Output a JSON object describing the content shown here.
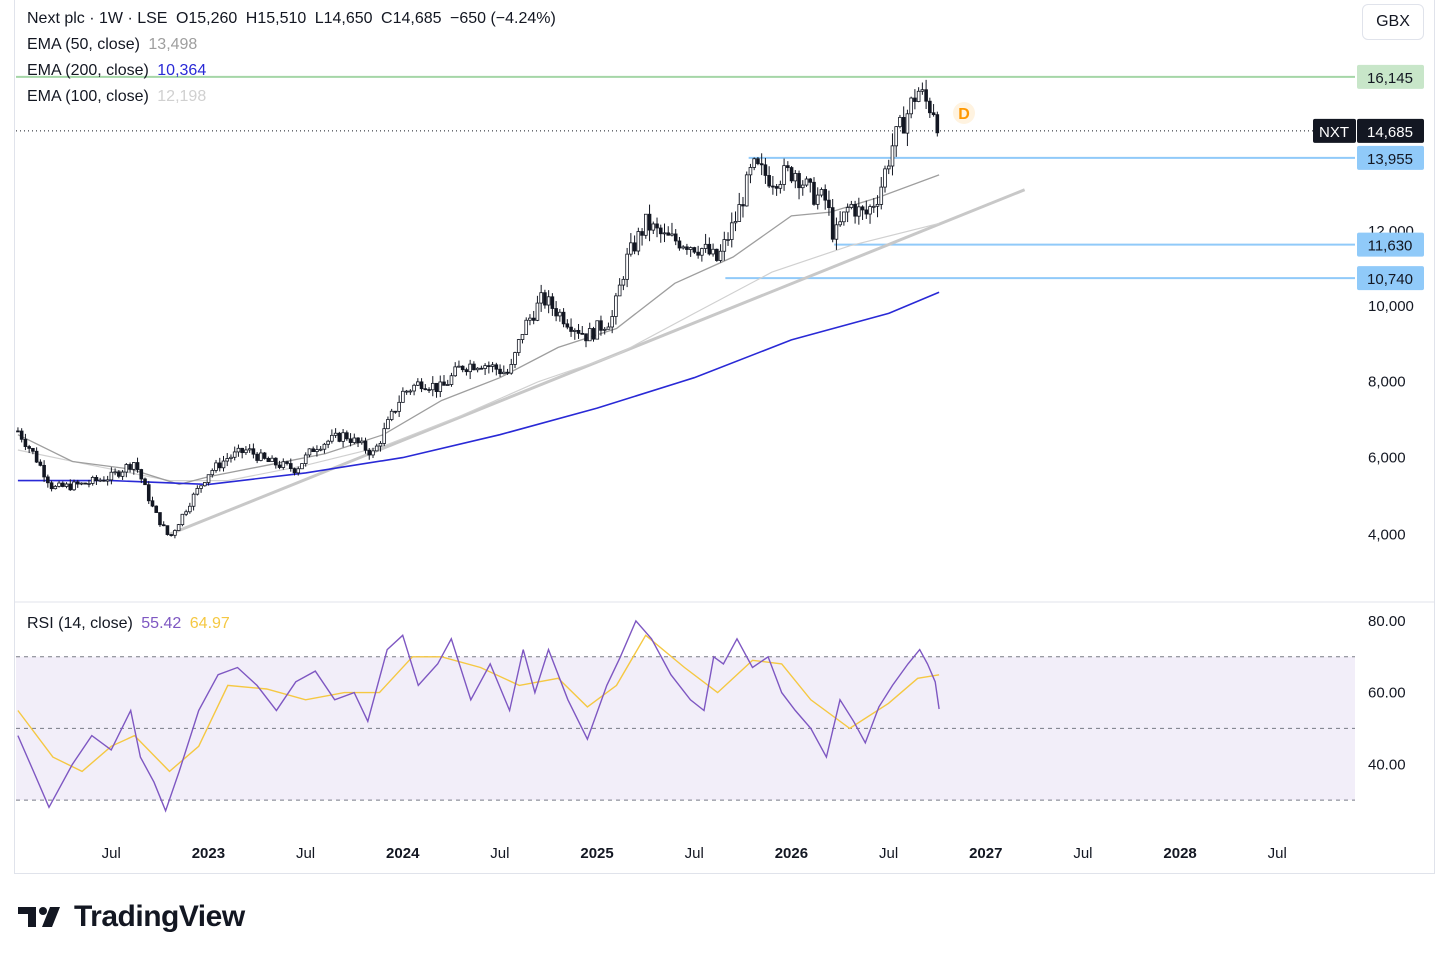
{
  "header": {
    "symbol_line": "Next plc · 1W · LSE",
    "open": "O15,260",
    "high": "H15,510",
    "low": "L14,650",
    "close": "C14,685",
    "change": "−650 (−4.24%)",
    "currency": "GBX"
  },
  "indicators": {
    "ema50": {
      "label": "EMA (50, close)",
      "value": "13,498",
      "color": "#9e9e9e"
    },
    "ema200": {
      "label": "EMA (200, close)",
      "value": "10,364",
      "color": "#2929d6"
    },
    "ema100": {
      "label": "EMA (100, close)",
      "value": "12,198",
      "color": "#d0d0d0"
    },
    "rsi": {
      "label": "RSI (14, close)",
      "value": "55.42",
      "ma_value": "64.97",
      "color": "#7e57c2",
      "ma_color": "#f5c842"
    }
  },
  "price_labels": {
    "ticker": "NXT",
    "last": "14,685",
    "level_16145": "16,145",
    "level_13955": "13,955",
    "level_11630": "11,630",
    "level_10740": "10,740",
    "dividend_marker": "D"
  },
  "brand": {
    "name": "TradingView"
  },
  "chart_data": {
    "type": "candlestick",
    "price_axis": {
      "ticks": [
        "4,000",
        "6,000",
        "8,000",
        "10,000",
        "12,000"
      ],
      "tick_values": [
        4000,
        6000,
        8000,
        10000,
        12000
      ],
      "range": [
        2400,
        17800
      ]
    },
    "time_axis": {
      "ticks": [
        "Jul",
        "2023",
        "Jul",
        "2024",
        "Jul",
        "2025",
        "Jul",
        "2026",
        "Jul",
        "2027",
        "Jul",
        "2028",
        "Jul"
      ],
      "tick_years": [
        2022.5,
        2023.0,
        2023.5,
        2024.0,
        2024.5,
        2025.0,
        2025.5,
        2026.0,
        2026.5,
        2027.0,
        2027.5,
        2028.0,
        2028.5
      ],
      "range": [
        2022.01,
        2028.9
      ]
    },
    "close_path": [
      [
        2022.02,
        6700
      ],
      [
        2022.1,
        6100
      ],
      [
        2022.2,
        5200
      ],
      [
        2022.35,
        5300
      ],
      [
        2022.5,
        5500
      ],
      [
        2022.62,
        5900
      ],
      [
        2022.72,
        4600
      ],
      [
        2022.8,
        3900
      ],
      [
        2022.9,
        4800
      ],
      [
        2023.0,
        5600
      ],
      [
        2023.1,
        6000
      ],
      [
        2023.2,
        6200
      ],
      [
        2023.3,
        5900
      ],
      [
        2023.45,
        5700
      ],
      [
        2023.55,
        6300
      ],
      [
        2023.7,
        6600
      ],
      [
        2023.85,
        6100
      ],
      [
        2024.0,
        7700
      ],
      [
        2024.1,
        8000
      ],
      [
        2024.2,
        7800
      ],
      [
        2024.3,
        8400
      ],
      [
        2024.4,
        8500
      ],
      [
        2024.55,
        8200
      ],
      [
        2024.62,
        9400
      ],
      [
        2024.72,
        10200
      ],
      [
        2024.85,
        9600
      ],
      [
        2024.95,
        9200
      ],
      [
        2025.08,
        9700
      ],
      [
        2025.15,
        11200
      ],
      [
        2025.25,
        12200
      ],
      [
        2025.35,
        11800
      ],
      [
        2025.45,
        11700
      ],
      [
        2025.55,
        11500
      ],
      [
        2025.62,
        11200
      ],
      [
        2025.72,
        12400
      ],
      [
        2025.8,
        13700
      ],
      [
        2025.9,
        13400
      ],
      [
        2026.02,
        13600
      ],
      [
        2026.1,
        13000
      ],
      [
        2026.18,
        12800
      ],
      [
        2026.22,
        11800
      ],
      [
        2026.3,
        12700
      ],
      [
        2026.38,
        12400
      ],
      [
        2026.45,
        13000
      ],
      [
        2026.52,
        14300
      ],
      [
        2026.6,
        15200
      ],
      [
        2026.65,
        15800
      ],
      [
        2026.7,
        15400
      ],
      [
        2026.74,
        15260
      ],
      [
        2026.76,
        14685
      ]
    ],
    "ema50_path": [
      [
        2022.02,
        6600
      ],
      [
        2022.3,
        5900
      ],
      [
        2022.6,
        5700
      ],
      [
        2022.85,
        5300
      ],
      [
        2023.0,
        5500
      ],
      [
        2023.3,
        5800
      ],
      [
        2023.6,
        6100
      ],
      [
        2023.9,
        6600
      ],
      [
        2024.2,
        7500
      ],
      [
        2024.5,
        8100
      ],
      [
        2024.8,
        8900
      ],
      [
        2025.1,
        9400
      ],
      [
        2025.4,
        10600
      ],
      [
        2025.7,
        11300
      ],
      [
        2026.0,
        12400
      ],
      [
        2026.2,
        12500
      ],
      [
        2026.45,
        12900
      ],
      [
        2026.76,
        13498
      ]
    ],
    "ema100_path": [
      [
        2022.02,
        6200
      ],
      [
        2022.4,
        5800
      ],
      [
        2022.8,
        5400
      ],
      [
        2023.1,
        5400
      ],
      [
        2023.5,
        5800
      ],
      [
        2023.9,
        6300
      ],
      [
        2024.3,
        7100
      ],
      [
        2024.7,
        8000
      ],
      [
        2025.1,
        8700
      ],
      [
        2025.5,
        9800
      ],
      [
        2025.9,
        10900
      ],
      [
        2026.3,
        11600
      ],
      [
        2026.76,
        12198
      ]
    ],
    "ema200_path": [
      [
        2022.02,
        5400
      ],
      [
        2022.5,
        5400
      ],
      [
        2023.0,
        5300
      ],
      [
        2023.5,
        5600
      ],
      [
        2024.0,
        6000
      ],
      [
        2024.5,
        6600
      ],
      [
        2025.0,
        7300
      ],
      [
        2025.5,
        8100
      ],
      [
        2026.0,
        9100
      ],
      [
        2026.5,
        9800
      ],
      [
        2026.76,
        10364
      ]
    ],
    "trendline": [
      [
        2022.8,
        4000
      ],
      [
        2027.2,
        13100
      ]
    ],
    "horizontal_levels": [
      {
        "value": 16145,
        "color": "#a5d6a7",
        "from": 2022.01
      },
      {
        "value": 13955,
        "color": "#90caf9",
        "from": 2025.78
      },
      {
        "value": 11630,
        "color": "#90caf9",
        "from": 2026.22
      },
      {
        "value": 10740,
        "color": "#90caf9",
        "from": 2025.66
      }
    ],
    "last_price": 14685,
    "rsi": {
      "axis_ticks": [
        "40.00",
        "60.00",
        "80.00"
      ],
      "tick_values": [
        40,
        60,
        80
      ],
      "range": [
        25,
        85
      ],
      "band": [
        30,
        70
      ],
      "values": [
        [
          2022.02,
          48
        ],
        [
          2022.1,
          38
        ],
        [
          2022.18,
          28
        ],
        [
          2022.3,
          40
        ],
        [
          2022.4,
          48
        ],
        [
          2022.5,
          44
        ],
        [
          2022.6,
          55
        ],
        [
          2022.65,
          42
        ],
        [
          2022.72,
          35
        ],
        [
          2022.78,
          27
        ],
        [
          2022.85,
          38
        ],
        [
          2022.95,
          55
        ],
        [
          2023.05,
          65
        ],
        [
          2023.15,
          67
        ],
        [
          2023.25,
          62
        ],
        [
          2023.35,
          55
        ],
        [
          2023.45,
          63
        ],
        [
          2023.55,
          66
        ],
        [
          2023.65,
          58
        ],
        [
          2023.75,
          60
        ],
        [
          2023.82,
          52
        ],
        [
          2023.92,
          72
        ],
        [
          2024.0,
          76
        ],
        [
          2024.08,
          62
        ],
        [
          2024.18,
          68
        ],
        [
          2024.25,
          75
        ],
        [
          2024.35,
          58
        ],
        [
          2024.45,
          68
        ],
        [
          2024.55,
          55
        ],
        [
          2024.62,
          72
        ],
        [
          2024.68,
          60
        ],
        [
          2024.75,
          72
        ],
        [
          2024.85,
          58
        ],
        [
          2024.95,
          47
        ],
        [
          2025.05,
          62
        ],
        [
          2025.12,
          70
        ],
        [
          2025.2,
          80
        ],
        [
          2025.28,
          75
        ],
        [
          2025.38,
          65
        ],
        [
          2025.48,
          58
        ],
        [
          2025.55,
          55
        ],
        [
          2025.6,
          70
        ],
        [
          2025.65,
          68
        ],
        [
          2025.72,
          75
        ],
        [
          2025.8,
          67
        ],
        [
          2025.88,
          70
        ],
        [
          2025.95,
          60
        ],
        [
          2026.02,
          55
        ],
        [
          2026.1,
          50
        ],
        [
          2026.18,
          42
        ],
        [
          2026.25,
          58
        ],
        [
          2026.32,
          52
        ],
        [
          2026.38,
          46
        ],
        [
          2026.45,
          56
        ],
        [
          2026.52,
          62
        ],
        [
          2026.6,
          68
        ],
        [
          2026.66,
          72
        ],
        [
          2026.7,
          68
        ],
        [
          2026.74,
          63
        ],
        [
          2026.76,
          55.42
        ]
      ],
      "ma": [
        [
          2022.02,
          55
        ],
        [
          2022.2,
          42
        ],
        [
          2022.35,
          38
        ],
        [
          2022.5,
          45
        ],
        [
          2022.62,
          48
        ],
        [
          2022.8,
          38
        ],
        [
          2022.95,
          45
        ],
        [
          2023.1,
          62
        ],
        [
          2023.3,
          61
        ],
        [
          2023.5,
          58
        ],
        [
          2023.7,
          60
        ],
        [
          2023.88,
          60
        ],
        [
          2024.05,
          70
        ],
        [
          2024.2,
          70
        ],
        [
          2024.4,
          67
        ],
        [
          2024.6,
          62
        ],
        [
          2024.8,
          64
        ],
        [
          2024.95,
          56
        ],
        [
          2025.1,
          62
        ],
        [
          2025.25,
          76
        ],
        [
          2025.45,
          67
        ],
        [
          2025.62,
          60
        ],
        [
          2025.8,
          69
        ],
        [
          2025.95,
          68
        ],
        [
          2026.1,
          58
        ],
        [
          2026.3,
          50
        ],
        [
          2026.5,
          57
        ],
        [
          2026.65,
          64
        ],
        [
          2026.76,
          64.97
        ]
      ]
    }
  }
}
